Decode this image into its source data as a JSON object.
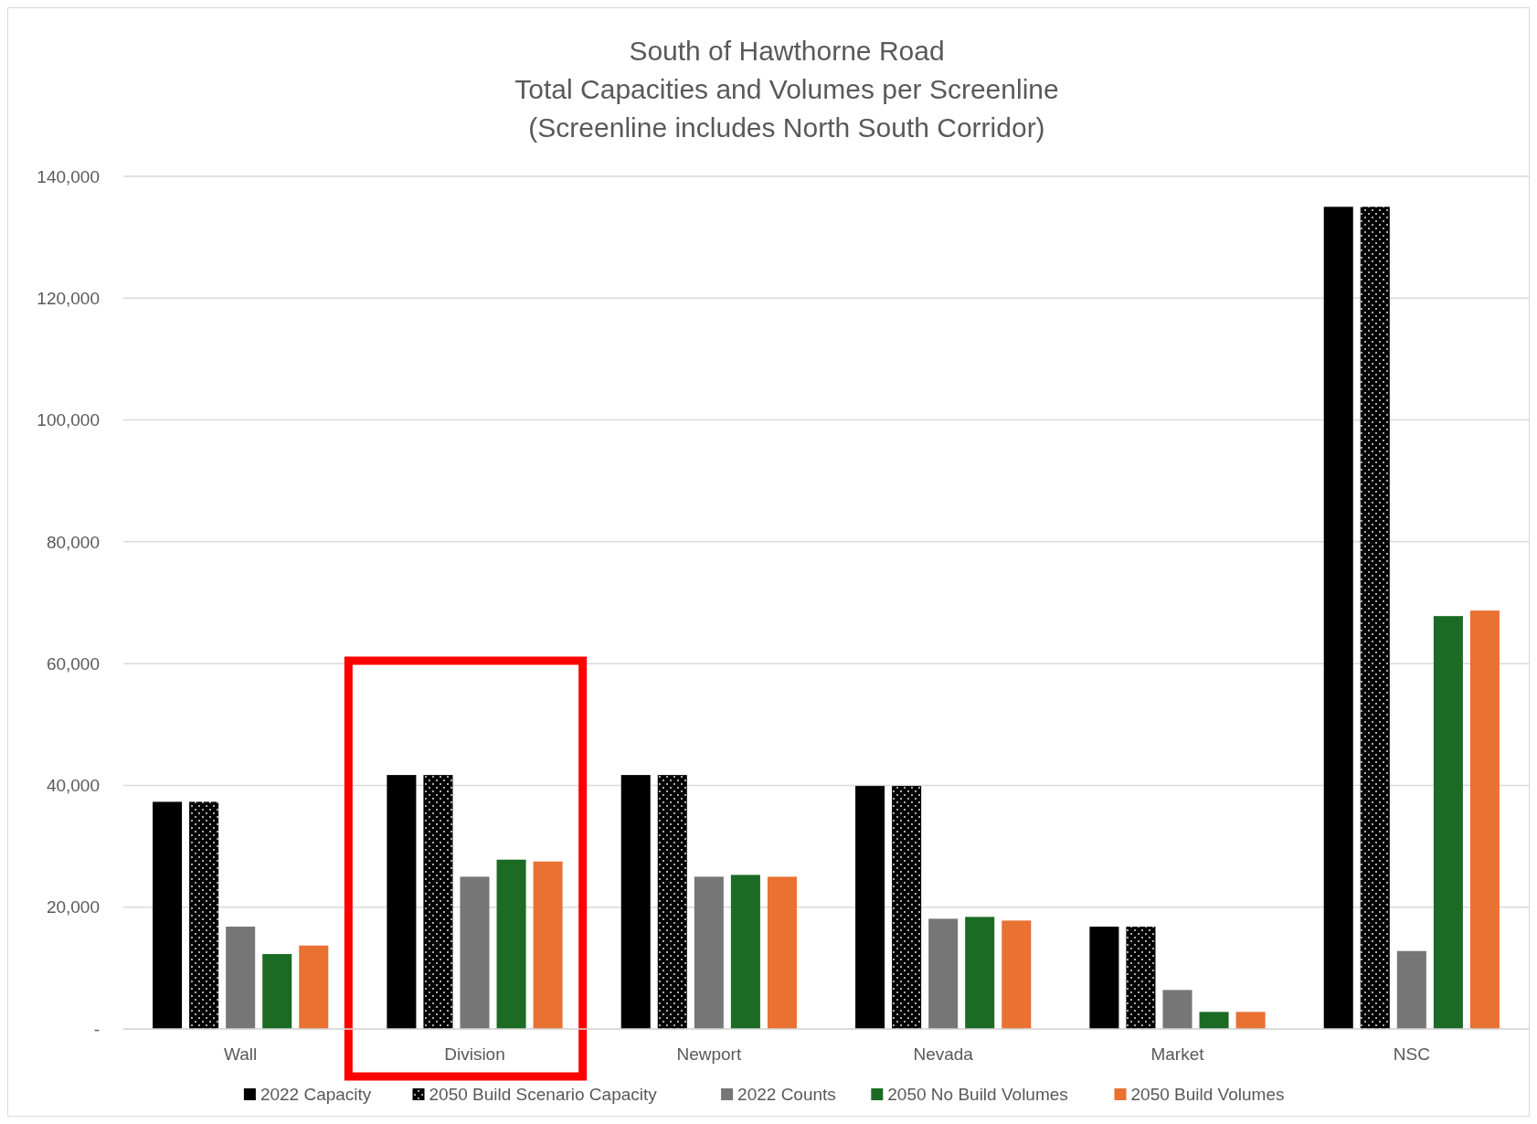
{
  "chart_data": {
    "type": "bar",
    "title": "South of Hawthorne Road\nTotal Capacities and Volumes per Screenline\n(Screenline includes North South Corridor)",
    "categories": [
      "Wall",
      "Division",
      "Newport",
      "Nevada",
      "Market",
      "NSC"
    ],
    "series": [
      {
        "name": "2022 Capacity",
        "color": "#000000",
        "values": [
          37300,
          41700,
          41700,
          39900,
          16800,
          135000
        ]
      },
      {
        "name": "2050 Build Scenario Capacity",
        "color": "#000000",
        "values": [
          37300,
          41700,
          41700,
          39900,
          16800,
          135000
        ]
      },
      {
        "name": "2022 Counts",
        "color": "#767676",
        "values": [
          16800,
          25000,
          25000,
          18100,
          6400,
          12800
        ]
      },
      {
        "name": "2050 No Build Volumes",
        "color": "#1b6b24",
        "values": [
          12300,
          27800,
          25300,
          18400,
          2800,
          67800
        ]
      },
      {
        "name": "2050 Build Volumes",
        "color": "#e97132",
        "values": [
          13700,
          27500,
          25000,
          17800,
          2800,
          68700
        ]
      }
    ],
    "ylim": [
      0,
      140000
    ],
    "yticks": [
      {
        "value": 0,
        "label": "-"
      },
      {
        "value": 20000,
        "label": "20,000"
      },
      {
        "value": 40000,
        "label": "40,000"
      },
      {
        "value": 60000,
        "label": "60,000"
      },
      {
        "value": 80000,
        "label": "80,000"
      },
      {
        "value": 100000,
        "label": "100,000"
      },
      {
        "value": 120000,
        "label": "120,000"
      },
      {
        "value": 140000,
        "label": "140,000"
      }
    ],
    "grid": "y",
    "legend": "bottom"
  }
}
